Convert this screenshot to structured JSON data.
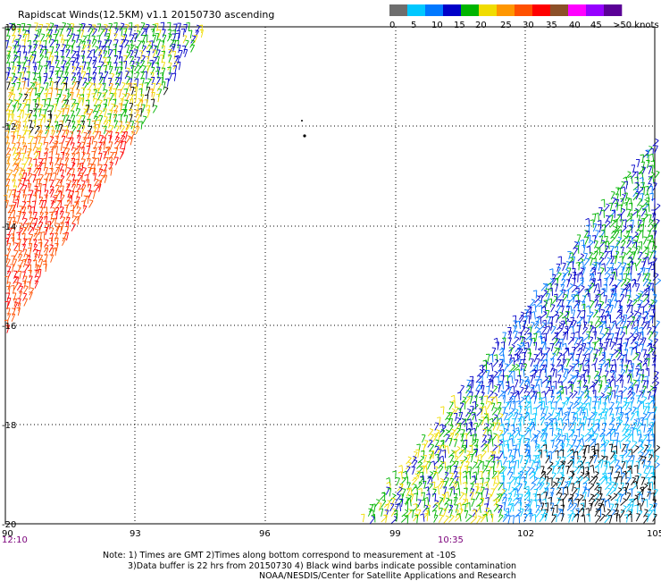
{
  "title": "Rapidscat Winds(12.5KM) v1.1 20150730 ascending",
  "colorbar": {
    "labels": [
      "0",
      "5",
      "10",
      "15",
      "20",
      "25",
      "30",
      "35",
      "40",
      "45",
      ">50 knots"
    ],
    "colors": [
      "#6e6e6e",
      "#00c8ff",
      "#0078ff",
      "#0000c8",
      "#00b400",
      "#f0dc00",
      "#ff9600",
      "#ff5000",
      "#ff0000",
      "#8c5028",
      "#ff00ff",
      "#9600ff",
      "#5a0096"
    ]
  },
  "lon_labels": [
    "90",
    "93",
    "96",
    "99",
    "102",
    "105"
  ],
  "lat_labels": [
    "-10",
    "-12",
    "-14",
    "-16",
    "-18",
    "-20"
  ],
  "time_labels": [
    "12:10",
    "10:35"
  ],
  "notes": [
    "Note: 1) Times are GMT 2)Times along bottom correspond to measurement at -10S",
    "3)Data buffer is 22 hrs from 20150730 4) Black wind barbs indicate possible contamination",
    "NOAA/NESDIS/Center for Satellite Applications and Research"
  ]
}
